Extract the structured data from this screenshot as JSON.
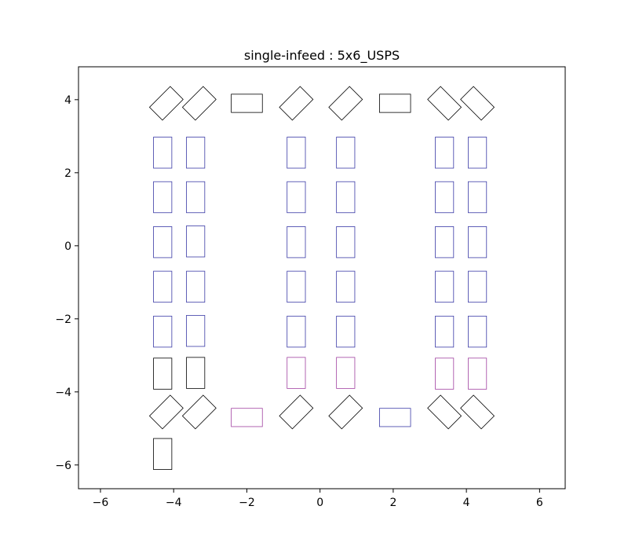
{
  "chart_data": {
    "type": "scatter",
    "title": "single-infeed : 5x6_USPS",
    "xlabel": "",
    "ylabel": "",
    "xlim": [
      -6.6,
      6.7
    ],
    "ylim": [
      -6.65,
      4.9
    ],
    "xticks": [
      -6,
      -4,
      -2,
      0,
      2,
      4,
      6
    ],
    "yticks": [
      -6,
      -4,
      -2,
      0,
      2,
      4
    ],
    "xtick_labels": [
      "−6",
      "−4",
      "−2",
      "0",
      "2",
      "4",
      "6"
    ],
    "ytick_labels": [
      "−6",
      "−4",
      "−2",
      "0",
      "2",
      "4"
    ],
    "grid": false,
    "colors": {
      "black": "#000000",
      "blue": "#3a3aa6",
      "purple": "#a040a0"
    },
    "shapes": [
      {
        "cx": -4.2,
        "cy": 3.9,
        "w": 0.8,
        "h": 0.5,
        "angle": 45,
        "color": "black"
      },
      {
        "cx": -3.3,
        "cy": 3.9,
        "w": 0.8,
        "h": 0.5,
        "angle": 45,
        "color": "black"
      },
      {
        "cx": -2.0,
        "cy": 3.9,
        "w": 0.85,
        "h": 0.5,
        "angle": 0,
        "color": "black"
      },
      {
        "cx": -0.65,
        "cy": 3.9,
        "w": 0.8,
        "h": 0.5,
        "angle": 45,
        "color": "black"
      },
      {
        "cx": 0.7,
        "cy": 3.9,
        "w": 0.8,
        "h": 0.5,
        "angle": 45,
        "color": "black"
      },
      {
        "cx": 2.05,
        "cy": 3.9,
        "w": 0.85,
        "h": 0.5,
        "angle": 0,
        "color": "black"
      },
      {
        "cx": 3.4,
        "cy": 3.9,
        "w": 0.8,
        "h": 0.5,
        "angle": -45,
        "color": "black"
      },
      {
        "cx": 4.3,
        "cy": 3.9,
        "w": 0.8,
        "h": 0.5,
        "angle": -45,
        "color": "black"
      },
      {
        "cx": -4.3,
        "cy": 2.55,
        "w": 0.5,
        "h": 0.85,
        "angle": 0,
        "color": "blue"
      },
      {
        "cx": -3.4,
        "cy": 2.55,
        "w": 0.5,
        "h": 0.85,
        "angle": 0,
        "color": "blue"
      },
      {
        "cx": -0.65,
        "cy": 2.55,
        "w": 0.5,
        "h": 0.85,
        "angle": 0,
        "color": "blue"
      },
      {
        "cx": 0.7,
        "cy": 2.55,
        "w": 0.5,
        "h": 0.85,
        "angle": 0,
        "color": "blue"
      },
      {
        "cx": 3.4,
        "cy": 2.55,
        "w": 0.5,
        "h": 0.85,
        "angle": 0,
        "color": "blue"
      },
      {
        "cx": 4.3,
        "cy": 2.55,
        "w": 0.5,
        "h": 0.85,
        "angle": 0,
        "color": "blue"
      },
      {
        "cx": -4.3,
        "cy": 1.33,
        "w": 0.5,
        "h": 0.85,
        "angle": 0,
        "color": "blue"
      },
      {
        "cx": -3.4,
        "cy": 1.33,
        "w": 0.5,
        "h": 0.85,
        "angle": 0,
        "color": "blue"
      },
      {
        "cx": -0.65,
        "cy": 1.33,
        "w": 0.5,
        "h": 0.85,
        "angle": 0,
        "color": "blue"
      },
      {
        "cx": 0.7,
        "cy": 1.33,
        "w": 0.5,
        "h": 0.85,
        "angle": 0,
        "color": "blue"
      },
      {
        "cx": 3.4,
        "cy": 1.33,
        "w": 0.5,
        "h": 0.85,
        "angle": 0,
        "color": "blue"
      },
      {
        "cx": 4.3,
        "cy": 1.33,
        "w": 0.5,
        "h": 0.85,
        "angle": 0,
        "color": "blue"
      },
      {
        "cx": -4.3,
        "cy": 0.1,
        "w": 0.5,
        "h": 0.85,
        "angle": 0,
        "color": "blue"
      },
      {
        "cx": -3.4,
        "cy": 0.12,
        "w": 0.5,
        "h": 0.85,
        "angle": 0,
        "color": "blue"
      },
      {
        "cx": -0.65,
        "cy": 0.1,
        "w": 0.5,
        "h": 0.85,
        "angle": 0,
        "color": "blue"
      },
      {
        "cx": 0.7,
        "cy": 0.1,
        "w": 0.5,
        "h": 0.85,
        "angle": 0,
        "color": "blue"
      },
      {
        "cx": 3.4,
        "cy": 0.1,
        "w": 0.5,
        "h": 0.85,
        "angle": 0,
        "color": "blue"
      },
      {
        "cx": 4.3,
        "cy": 0.1,
        "w": 0.5,
        "h": 0.85,
        "angle": 0,
        "color": "blue"
      },
      {
        "cx": -4.3,
        "cy": -1.12,
        "w": 0.5,
        "h": 0.85,
        "angle": 0,
        "color": "blue"
      },
      {
        "cx": -3.4,
        "cy": -1.12,
        "w": 0.5,
        "h": 0.85,
        "angle": 0,
        "color": "blue"
      },
      {
        "cx": -0.65,
        "cy": -1.12,
        "w": 0.5,
        "h": 0.85,
        "angle": 0,
        "color": "blue"
      },
      {
        "cx": 0.7,
        "cy": -1.12,
        "w": 0.5,
        "h": 0.85,
        "angle": 0,
        "color": "blue"
      },
      {
        "cx": 3.4,
        "cy": -1.12,
        "w": 0.5,
        "h": 0.85,
        "angle": 0,
        "color": "blue"
      },
      {
        "cx": 4.3,
        "cy": -1.12,
        "w": 0.5,
        "h": 0.85,
        "angle": 0,
        "color": "blue"
      },
      {
        "cx": -4.3,
        "cy": -2.35,
        "w": 0.5,
        "h": 0.85,
        "angle": 0,
        "color": "blue"
      },
      {
        "cx": -3.4,
        "cy": -2.33,
        "w": 0.5,
        "h": 0.85,
        "angle": 0,
        "color": "blue"
      },
      {
        "cx": -0.65,
        "cy": -2.35,
        "w": 0.5,
        "h": 0.85,
        "angle": 0,
        "color": "blue"
      },
      {
        "cx": 0.7,
        "cy": -2.35,
        "w": 0.5,
        "h": 0.85,
        "angle": 0,
        "color": "blue"
      },
      {
        "cx": 3.4,
        "cy": -2.35,
        "w": 0.5,
        "h": 0.85,
        "angle": 0,
        "color": "blue"
      },
      {
        "cx": 4.3,
        "cy": -2.35,
        "w": 0.5,
        "h": 0.85,
        "angle": 0,
        "color": "blue"
      },
      {
        "cx": -4.3,
        "cy": -3.5,
        "w": 0.5,
        "h": 0.85,
        "angle": 0,
        "color": "black"
      },
      {
        "cx": -3.4,
        "cy": -3.48,
        "w": 0.5,
        "h": 0.85,
        "angle": 0,
        "color": "black"
      },
      {
        "cx": -0.65,
        "cy": -3.48,
        "w": 0.5,
        "h": 0.85,
        "angle": 0,
        "color": "purple"
      },
      {
        "cx": 0.7,
        "cy": -3.48,
        "w": 0.5,
        "h": 0.85,
        "angle": 0,
        "color": "purple"
      },
      {
        "cx": 3.4,
        "cy": -3.5,
        "w": 0.5,
        "h": 0.85,
        "angle": 0,
        "color": "purple"
      },
      {
        "cx": 4.3,
        "cy": -3.5,
        "w": 0.5,
        "h": 0.85,
        "angle": 0,
        "color": "purple"
      },
      {
        "cx": -4.2,
        "cy": -4.55,
        "w": 0.8,
        "h": 0.5,
        "angle": 45,
        "color": "black"
      },
      {
        "cx": -3.3,
        "cy": -4.55,
        "w": 0.8,
        "h": 0.5,
        "angle": 45,
        "color": "black"
      },
      {
        "cx": -2.0,
        "cy": -4.7,
        "w": 0.85,
        "h": 0.5,
        "angle": 0,
        "color": "purple"
      },
      {
        "cx": -0.65,
        "cy": -4.55,
        "w": 0.8,
        "h": 0.5,
        "angle": 45,
        "color": "black"
      },
      {
        "cx": 0.7,
        "cy": -4.55,
        "w": 0.8,
        "h": 0.5,
        "angle": 45,
        "color": "black"
      },
      {
        "cx": 2.05,
        "cy": -4.7,
        "w": 0.85,
        "h": 0.5,
        "angle": 0,
        "color": "blue"
      },
      {
        "cx": 3.4,
        "cy": -4.55,
        "w": 0.8,
        "h": 0.5,
        "angle": -45,
        "color": "black"
      },
      {
        "cx": 4.3,
        "cy": -4.55,
        "w": 0.8,
        "h": 0.5,
        "angle": -45,
        "color": "black"
      },
      {
        "cx": -4.3,
        "cy": -5.7,
        "w": 0.5,
        "h": 0.85,
        "angle": 0,
        "color": "black"
      }
    ]
  }
}
